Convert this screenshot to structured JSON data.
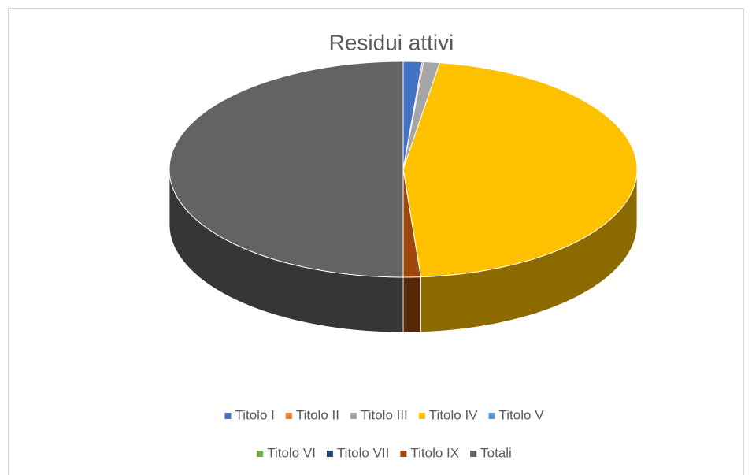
{
  "chart_data": {
    "type": "pie",
    "title": "Residui attivi",
    "categories": [
      "Titolo I",
      "Titolo II",
      "Titolo III",
      "Titolo IV",
      "Titolo V",
      "Titolo VI",
      "Titolo VII",
      "Titolo IX",
      "Totali"
    ],
    "values": [
      1.3,
      0.1,
      1.1,
      46.3,
      0,
      0,
      0,
      1.2,
      50
    ],
    "colors": [
      "#4472c4",
      "#ed7d31",
      "#a5a5a5",
      "#ffc000",
      "#5b9bd5",
      "#70ad47",
      "#264478",
      "#9e480e",
      "#636363"
    ]
  }
}
